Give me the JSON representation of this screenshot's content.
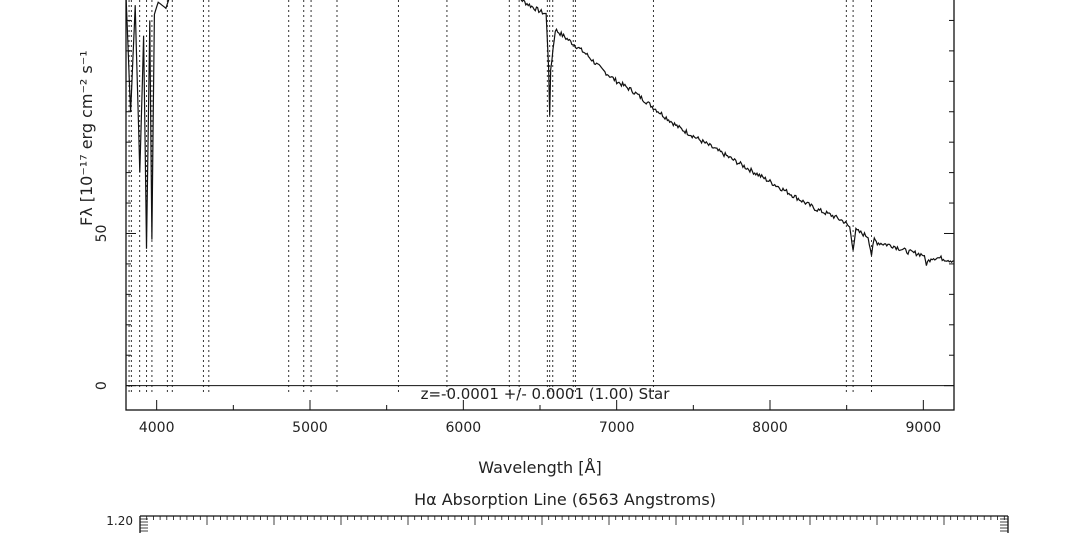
{
  "chart_data": [
    {
      "type": "line",
      "title": "",
      "xlabel": "Wavelength [Å]",
      "ylabel": "Fλ [10⁻¹⁷ erg cm⁻² s⁻¹",
      "xlim": [
        3800,
        9200
      ],
      "ylim": [
        -8,
        130
      ],
      "x_ticks": [
        4000,
        5000,
        6000,
        7000,
        8000,
        9000
      ],
      "x_tick_labels": [
        "4000",
        "5000",
        "6000",
        "7000",
        "8000",
        "9000"
      ],
      "y_ticks": [
        0,
        50
      ],
      "y_tick_labels": [
        "0",
        "50"
      ],
      "grid": false,
      "annotation": "z=-0.0001 +/- 0.0001 (1.00) Star",
      "line_markers_angstrom": [
        3820,
        3835,
        3889,
        3934,
        3969,
        4070,
        4102,
        4305,
        4340,
        4861,
        4959,
        5007,
        5176,
        5577,
        5893,
        6300,
        6364,
        6548,
        6563,
        6583,
        6717,
        6731,
        7240,
        8498,
        8542,
        8662
      ],
      "series": [
        {
          "x": [
            3800,
            3830,
            3860,
            3890,
            3915,
            3934,
            3955,
            3969,
            3985,
            4010,
            4060,
            4100,
            6300,
            6400,
            6500,
            6540,
            6556,
            6563,
            6570,
            6600,
            6700,
            6800,
            6900,
            7000,
            7100,
            7200,
            7300,
            7400,
            7500,
            7600,
            7700,
            7800,
            7900,
            8000,
            8100,
            8200,
            8300,
            8400,
            8480,
            8500,
            8520,
            8542,
            8560,
            8600,
            8640,
            8662,
            8680,
            8700,
            8800,
            8900,
            9000,
            9020,
            9050,
            9100,
            9200
          ],
          "y": [
            128,
            90,
            125,
            70,
            115,
            45,
            120,
            48,
            122,
            126,
            124,
            130,
            130,
            126,
            123,
            122,
            105,
            88,
            104,
            117,
            113,
            109,
            104,
            100,
            97,
            93,
            89,
            85,
            82,
            79,
            76,
            73,
            70,
            67,
            64,
            61,
            58,
            56,
            54,
            53,
            52,
            45,
            51,
            50,
            49,
            43,
            48,
            47,
            46,
            44,
            43,
            40,
            42,
            42,
            41
          ]
        }
      ]
    },
    {
      "type": "line",
      "title": "Hα Absorption Line (6563 Angstroms)",
      "xlabel": "",
      "ylabel": "",
      "y_ticks": [
        1.2
      ],
      "y_tick_labels": [
        "1.20"
      ],
      "series": []
    }
  ]
}
